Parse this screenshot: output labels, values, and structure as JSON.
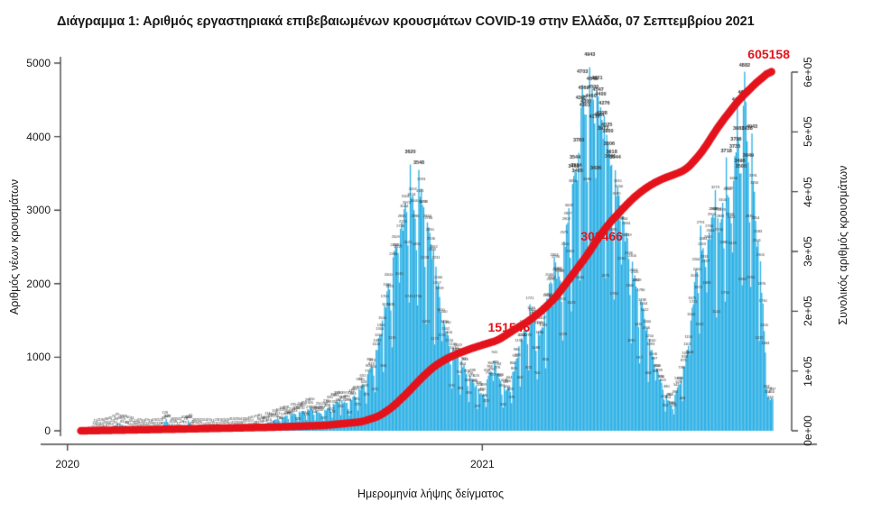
{
  "title": "Διάγραμμα 1: Αριθμός εργαστηριακά επιβεβαιωμένων κρουσμάτων COVID-19 στην Ελλάδα, 07 Σεπτεμβρίου 2021",
  "colors": {
    "bars": "#2FB1E5",
    "cumulative_line": "#E4131B",
    "annotation_text": "#E4131B",
    "axis": "#4a4a4a",
    "text": "#1a1a1a",
    "bar_labels": "#2e2e2e"
  },
  "chart_data": {
    "type": "bar",
    "combo": "daily bars (left axis) + cumulative thick line (right axis)",
    "title": "Διάγραμμα 1: Αριθμός εργαστηριακά επιβεβαιωμένων κρουσμάτων COVID-19 στην Ελλάδα, 07 Σεπτεμβρίου 2021",
    "xlabel": "Ημερομηνία λήψης δείγματος",
    "x_axis": {
      "label": "Ημερομηνία λήψης δείγματος",
      "ticks": [
        {
          "label": "2020",
          "day": -15
        },
        {
          "label": "2021",
          "day": 325
        }
      ]
    },
    "y_left": {
      "label": "Αριθμός νέων κρουσμάτων",
      "ticks": [
        "0",
        "1000",
        "2000",
        "3000",
        "4000",
        "5000"
      ],
      "range": [
        0,
        5000
      ]
    },
    "y_right": {
      "label": "Συνολικός αριθμός κρουσμάτων",
      "ticks": [
        "0e+00",
        "1e+05",
        "2e+05",
        "3e+05",
        "4e+05",
        "5e+05",
        "6e+05"
      ],
      "range": [
        0,
        600000
      ]
    },
    "series": [
      {
        "name": "daily_new_cases",
        "type": "bar",
        "note": "sampled control points [day_index, value], day 0 = first sample date in 2020; values between points interpolated",
        "points": [
          [
            0,
            3
          ],
          [
            6,
            12
          ],
          [
            12,
            25
          ],
          [
            20,
            45
          ],
          [
            26,
            95
          ],
          [
            33,
            70
          ],
          [
            40,
            35
          ],
          [
            48,
            22
          ],
          [
            55,
            18
          ],
          [
            62,
            25
          ],
          [
            66,
            160
          ],
          [
            70,
            45
          ],
          [
            78,
            30
          ],
          [
            84,
            141
          ],
          [
            88,
            40
          ],
          [
            95,
            25
          ],
          [
            105,
            22
          ],
          [
            115,
            28
          ],
          [
            125,
            35
          ],
          [
            135,
            55
          ],
          [
            145,
            90
          ],
          [
            155,
            150
          ],
          [
            165,
            210
          ],
          [
            175,
            260
          ],
          [
            185,
            310
          ],
          [
            192,
            240
          ],
          [
            200,
            330
          ],
          [
            208,
            430
          ],
          [
            214,
            380
          ],
          [
            220,
            480
          ],
          [
            226,
            620
          ],
          [
            232,
            800
          ],
          [
            238,
            1100
          ],
          [
            243,
            1500
          ],
          [
            248,
            2000
          ],
          [
            253,
            2450
          ],
          [
            258,
            2746
          ],
          [
            262,
            3103
          ],
          [
            266,
            3620
          ],
          [
            269,
            3000
          ],
          [
            273,
            3548
          ],
          [
            277,
            3038
          ],
          [
            281,
            2766
          ],
          [
            285,
            2462
          ],
          [
            289,
            2000
          ],
          [
            293,
            1500
          ],
          [
            297,
            1300
          ],
          [
            301,
            1100
          ],
          [
            305,
            1043
          ],
          [
            310,
            900
          ],
          [
            315,
            750
          ],
          [
            320,
            620
          ],
          [
            325,
            490
          ],
          [
            330,
            750
          ],
          [
            335,
            941
          ],
          [
            340,
            680
          ],
          [
            345,
            560
          ],
          [
            350,
            800
          ],
          [
            355,
            1150
          ],
          [
            360,
            1420
          ],
          [
            364,
            1721
          ],
          [
            368,
            1500
          ],
          [
            372,
            1300
          ],
          [
            376,
            1600
          ],
          [
            380,
            2000
          ],
          [
            384,
            2353
          ],
          [
            388,
            2100
          ],
          [
            392,
            2575
          ],
          [
            396,
            3028
          ],
          [
            400,
            3465
          ],
          [
            404,
            3780
          ],
          [
            407,
            4703
          ],
          [
            410,
            4300
          ],
          [
            413,
            4943
          ],
          [
            416,
            4500
          ],
          [
            419,
            4621
          ],
          [
            422,
            4400
          ],
          [
            425,
            4276
          ],
          [
            428,
            3900
          ],
          [
            431,
            3618
          ],
          [
            434,
            3544
          ],
          [
            437,
            3200
          ],
          [
            440,
            2919
          ],
          [
            444,
            2619
          ],
          [
            448,
            2300
          ],
          [
            452,
            1929
          ],
          [
            456,
            1738
          ],
          [
            460,
            1400
          ],
          [
            464,
            1100
          ],
          [
            468,
            850
          ],
          [
            472,
            650
          ],
          [
            476,
            480
          ],
          [
            480,
            340
          ],
          [
            484,
            542
          ],
          [
            488,
            736
          ],
          [
            492,
            1013
          ],
          [
            496,
            1500
          ],
          [
            500,
            2200
          ],
          [
            504,
            2791
          ],
          [
            507,
            2331
          ],
          [
            510,
            2600
          ],
          [
            513,
            2900
          ],
          [
            516,
            3273
          ],
          [
            519,
            2700
          ],
          [
            522,
            3100
          ],
          [
            525,
            3718
          ],
          [
            528,
            2900
          ],
          [
            531,
            3400
          ],
          [
            534,
            4406
          ],
          [
            537,
            3500
          ],
          [
            540,
            4882
          ],
          [
            543,
            3649
          ],
          [
            546,
            4043
          ],
          [
            549,
            2854
          ],
          [
            551,
            2583
          ],
          [
            553,
            2305
          ],
          [
            555,
            1730
          ],
          [
            557,
            1063
          ],
          [
            559,
            450
          ]
        ]
      },
      {
        "name": "cumulative_cases",
        "type": "line",
        "note": "sampled control points [day_index, cumulative_total]",
        "points": [
          [
            -4,
            0
          ],
          [
            78,
            3000
          ],
          [
            152,
            6000
          ],
          [
            196,
            9000
          ],
          [
            226,
            15000
          ],
          [
            240,
            24000
          ],
          [
            251,
            39000
          ],
          [
            263,
            62000
          ],
          [
            274,
            86000
          ],
          [
            285,
            107000
          ],
          [
            296,
            121000
          ],
          [
            307,
            131000
          ],
          [
            318,
            139000
          ],
          [
            329,
            146000
          ],
          [
            338,
            151546
          ],
          [
            351,
            169000
          ],
          [
            362,
            182000
          ],
          [
            374,
            201000
          ],
          [
            385,
            223000
          ],
          [
            396,
            253000
          ],
          [
            407,
            283000
          ],
          [
            414,
            302466
          ],
          [
            418,
            317000
          ],
          [
            429,
            347000
          ],
          [
            440,
            371000
          ],
          [
            447,
            386000
          ],
          [
            455,
            400000
          ],
          [
            462,
            410000
          ],
          [
            470,
            419000
          ],
          [
            477,
            425000
          ],
          [
            484,
            430000
          ],
          [
            492,
            437000
          ],
          [
            499,
            452000
          ],
          [
            507,
            472000
          ],
          [
            514,
            495000
          ],
          [
            521,
            516000
          ],
          [
            529,
            537000
          ],
          [
            536,
            555000
          ],
          [
            544,
            571000
          ],
          [
            551,
            585000
          ],
          [
            558,
            596000
          ],
          [
            562,
            605158
          ]
        ]
      }
    ],
    "annotations": [
      {
        "text": "151546",
        "day": 338,
        "value": 151546
      },
      {
        "text": "302466",
        "day": 414,
        "value": 302466
      },
      {
        "text": "605158",
        "day": 562,
        "value": 605158
      }
    ],
    "legend": "none",
    "grid": "off"
  }
}
